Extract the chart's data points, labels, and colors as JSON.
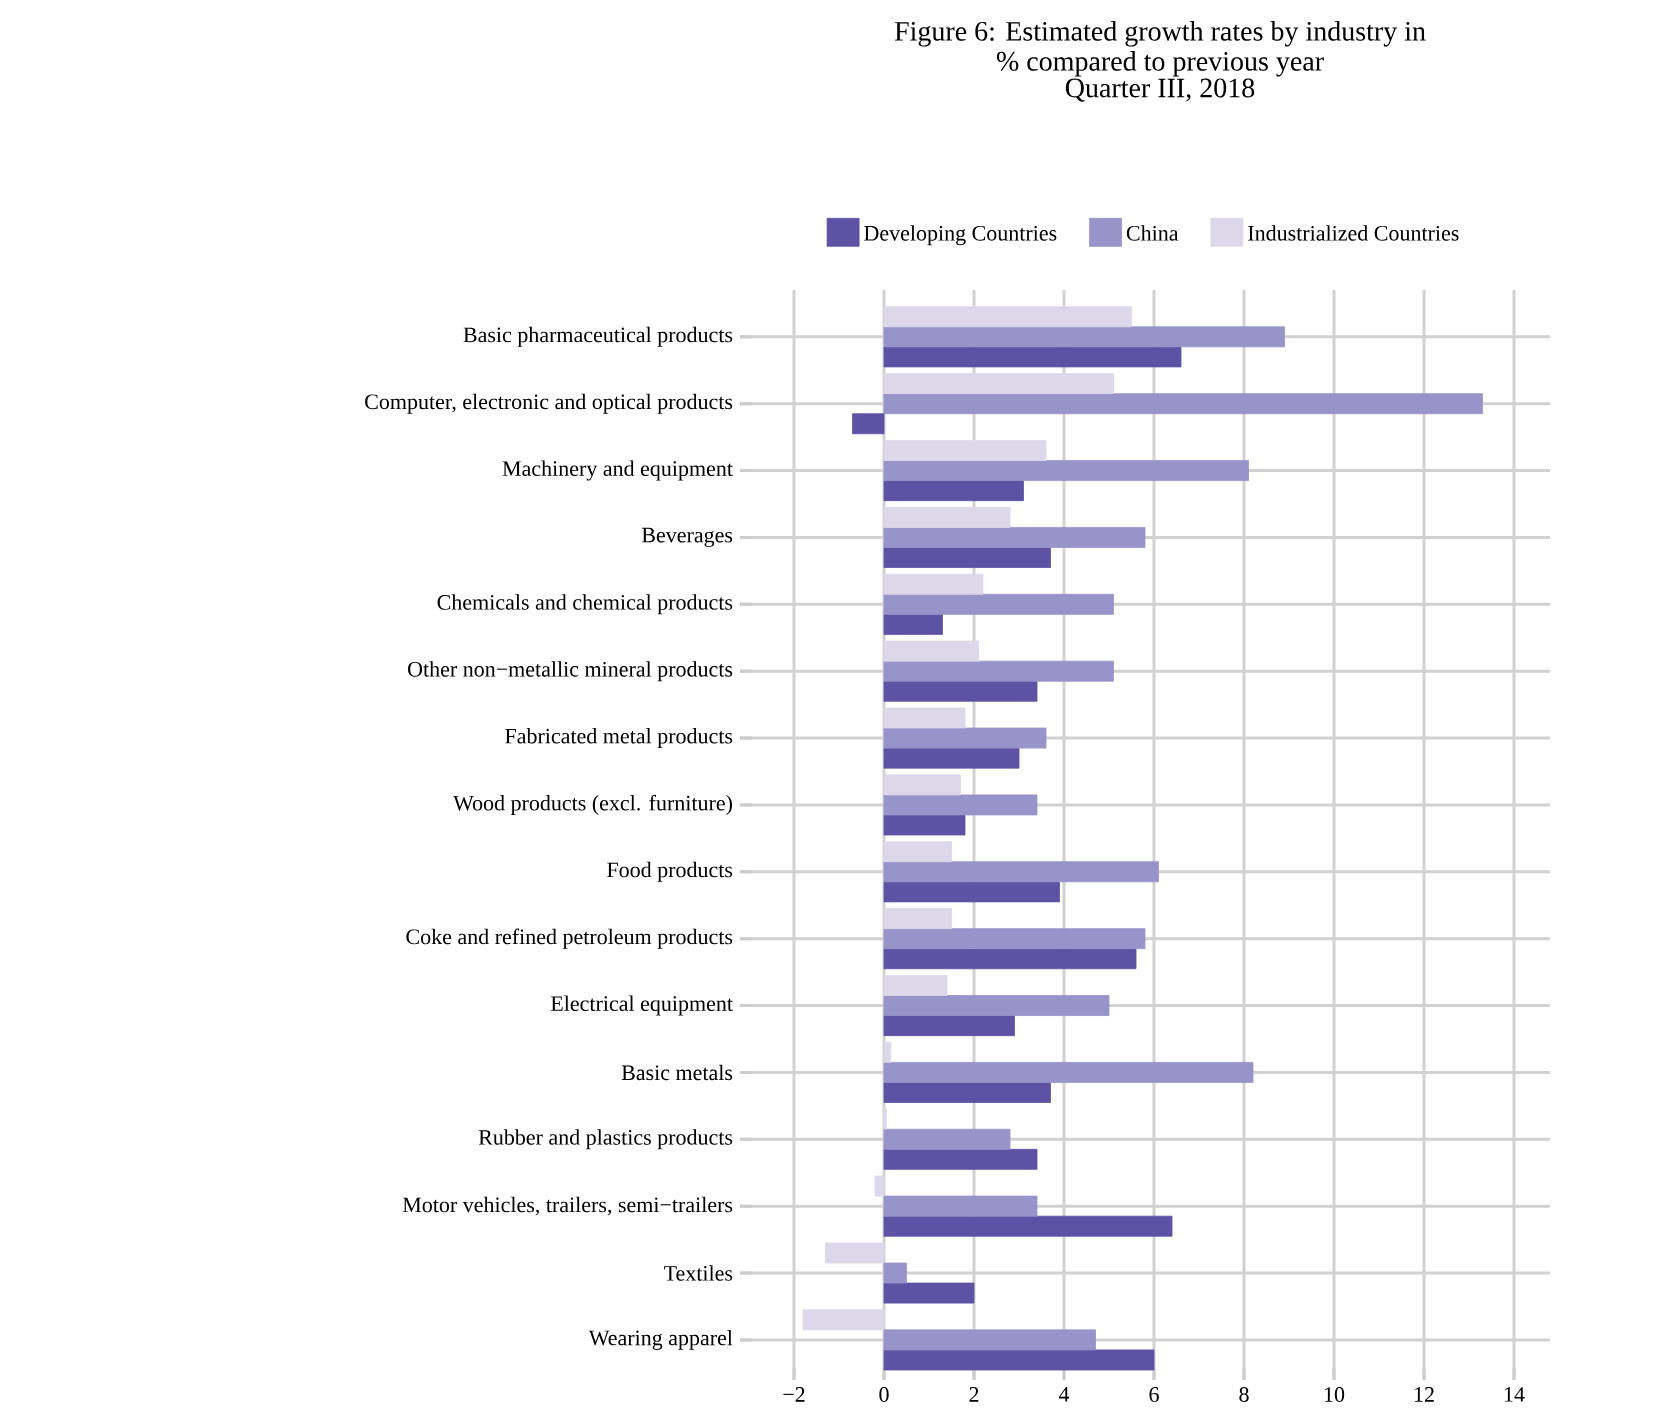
{
  "chart_data": {
    "type": "bar",
    "orientation": "horizontal",
    "title": "Figure 6: Estimated growth rates by industry in % compared to previous year",
    "subtitle": "Quarter III, 2018",
    "categories": [
      "Basic pharmaceutical products",
      "Computer, electronic and optical products",
      "Machinery and equipment",
      "Beverages",
      "Chemicals and chemical products",
      "Other non−metallic mineral products",
      "Fabricated metal products",
      "Wood products (excl. furniture)",
      "Food products",
      "Coke and refined petroleum products",
      "Electrical equipment",
      "Basic metals",
      "Rubber and plastics products",
      "Motor vehicles, trailers, semi−trailers",
      "Textiles",
      "Wearing apparel"
    ],
    "series": [
      {
        "name": "Developing Countries",
        "color": "#5e52a4",
        "values": [
          6.6,
          -0.7,
          3.1,
          3.7,
          1.3,
          3.4,
          3.0,
          1.8,
          3.9,
          5.6,
          2.9,
          3.7,
          3.4,
          6.4,
          2.0,
          6.0
        ]
      },
      {
        "name": "China",
        "color": "#9893c9",
        "values": [
          8.9,
          13.3,
          8.1,
          5.8,
          5.1,
          5.1,
          3.6,
          3.4,
          6.1,
          5.8,
          5.0,
          8.2,
          2.8,
          3.4,
          0.5,
          4.7
        ]
      },
      {
        "name": "Industrialized Countries",
        "color": "#dcd8ea",
        "values": [
          5.5,
          5.1,
          3.6,
          2.8,
          2.2,
          2.1,
          1.8,
          1.7,
          1.5,
          1.5,
          1.4,
          0.15,
          0.05,
          -0.2,
          -1.3,
          -1.8
        ]
      }
    ],
    "xlim": [
      -3.2,
      14.8
    ],
    "xticks": [
      {
        "value": -2,
        "label": "−2"
      },
      0,
      2,
      4,
      6,
      8,
      10,
      12,
      14
    ],
    "grid": true,
    "legend": "top"
  }
}
